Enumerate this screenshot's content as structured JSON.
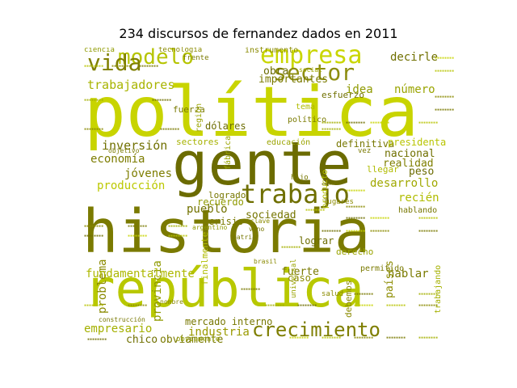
{
  "title": "234 discursos de fernandez dados en 2011",
  "words": [
    {
      "text": "política",
      "color": "#c8d400"
    },
    {
      "text": "gente",
      "color": "#6b6b00"
    },
    {
      "text": "historia",
      "color": "#7a7a00"
    },
    {
      "text": "república",
      "color": "#b8c800"
    },
    {
      "text": "trabajo",
      "color": "#6f6f00"
    },
    {
      "text": "empresa",
      "color": "#c9d600"
    },
    {
      "text": "sector",
      "color": "#8d8d10"
    },
    {
      "text": "modelo",
      "color": "#b6c400"
    },
    {
      "text": "vida",
      "color": "#7f7f00"
    },
    {
      "text": "crecimiento",
      "color": "#7e7e00"
    },
    {
      "text": "trabajadores",
      "color": "#a8b400"
    },
    {
      "text": "decirle",
      "color": "#707000"
    },
    {
      "text": "número",
      "color": "#9aa400"
    },
    {
      "text": "obra",
      "color": "#6a6a00"
    },
    {
      "text": "importantes",
      "color": "#7b7b00"
    },
    {
      "text": "inversión",
      "color": "#707000"
    },
    {
      "text": "economía",
      "color": "#7c7c00"
    },
    {
      "text": "jóvenes",
      "color": "#7d7d00"
    },
    {
      "text": "producción",
      "color": "#bcc800"
    },
    {
      "text": "problema",
      "color": "#8a8a00"
    },
    {
      "text": "provincia",
      "color": "#8f9a00"
    },
    {
      "text": "pueblo",
      "color": "#727200"
    },
    {
      "text": "fundamentalmente",
      "color": "#adb800"
    },
    {
      "text": "empresario",
      "color": "#a4b000"
    },
    {
      "text": "industria",
      "color": "#9a9a00"
    },
    {
      "text": "chico",
      "color": "#707000"
    },
    {
      "text": "obviamente",
      "color": "#7a7a00"
    },
    {
      "text": "mercado interno",
      "color": "#777700"
    },
    {
      "text": "sociedad",
      "color": "#757500"
    },
    {
      "text": "desarrollo",
      "color": "#a0a800"
    },
    {
      "text": "recién",
      "color": "#b0bc00"
    },
    {
      "text": "hablar",
      "color": "#7a7a00"
    },
    {
      "text": "nacional",
      "color": "#707000"
    },
    {
      "text": "realidad",
      "color": "#7f7f00"
    },
    {
      "text": "peso",
      "color": "#6b6b00"
    },
    {
      "text": "países",
      "color": "#8c8c00"
    },
    {
      "text": "lograr",
      "color": "#6c6c00"
    },
    {
      "text": "fuerte",
      "color": "#7a7a00"
    },
    {
      "text": "caso",
      "color": "#8a8a00"
    },
    {
      "text": "crisis",
      "color": "#7a7a00"
    },
    {
      "text": "dólares",
      "color": "#6c6c00"
    },
    {
      "text": "idea",
      "color": "#8f9a00"
    },
    {
      "text": "tema",
      "color": "#b0bc00"
    },
    {
      "text": "definitiva",
      "color": "#777700"
    },
    {
      "text": "presidenta",
      "color": "#b8c400"
    },
    {
      "text": "educación",
      "color": "#9aa400"
    },
    {
      "text": "sectores",
      "color": "#a6b200"
    },
    {
      "text": "fuerza",
      "color": "#7a7a00"
    },
    {
      "text": "región",
      "color": "#9aa400"
    },
    {
      "text": "logrado",
      "color": "#777700"
    },
    {
      "text": "recuerdo",
      "color": "#8f9a00"
    },
    {
      "text": "finalmente",
      "color": "#b0bc00"
    },
    {
      "text": "debemos",
      "color": "#8a8a00"
    },
    {
      "text": "permitido",
      "color": "#7a7a00"
    },
    {
      "text": "derecho",
      "color": "#9aa400"
    },
    {
      "text": "llegar",
      "color": "#b0bc00"
    },
    {
      "text": "hablando",
      "color": "#777700"
    },
    {
      "text": "político",
      "color": "#7a7a00"
    },
    {
      "text": "esfuerzo",
      "color": "#707000"
    },
    {
      "text": "instrumento",
      "color": "#8a8a00"
    },
    {
      "text": "ciencia",
      "color": "#8f9a00"
    },
    {
      "text": "tecnología",
      "color": "#8a8a00"
    },
    {
      "text": "frente",
      "color": "#7a7a00"
    },
    {
      "text": "producto",
      "color": "#b0bc00"
    },
    {
      "text": "fábrica",
      "color": "#9aa400"
    },
    {
      "text": "trabajando",
      "color": "#a4b000"
    },
    {
      "text": "vez",
      "color": "#7a7a00"
    },
    {
      "text": "lugares",
      "color": "#8a8a00"
    },
    {
      "text": "hijo",
      "color": "#777700"
    },
    {
      "text": "social",
      "color": "#a0a800"
    },
    {
      "text": "salud",
      "color": "#8a8a00"
    },
    {
      "text": "obviamente",
      "color": "#8f9a00"
    },
    {
      "text": "construcción",
      "color": "#777700"
    },
    {
      "text": "nombre",
      "color": "#8a8a00"
    },
    {
      "text": "universal",
      "color": "#9aa400"
    },
    {
      "text": "patria",
      "color": "#777700"
    },
    {
      "text": "clave",
      "color": "#8a8a00"
    },
    {
      "text": "vino",
      "color": "#777700"
    },
    {
      "text": "brasil",
      "color": "#8a8a00"
    },
    {
      "text": "objetivo",
      "color": "#7a7a00"
    },
    {
      "text": "argentino",
      "color": "#8f9a00"
    }
  ]
}
